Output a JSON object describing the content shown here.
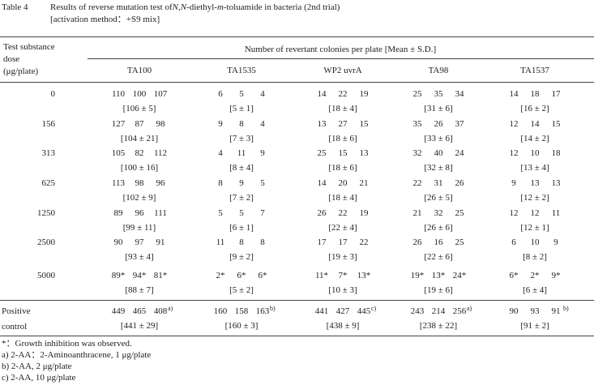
{
  "title": {
    "label": "Table 4",
    "parts": [
      "Results of reverse mutation test of ",
      "N,N",
      "-diethyl-",
      "m",
      "-toluamide in bacteria (2nd trial)"
    ],
    "subtitle": "[activation method：+S9 mix]"
  },
  "header": {
    "dose": [
      "Test substance",
      "dose",
      "(μg/plate)"
    ],
    "group": "Number of revertant colonies per plate [Mean ± S.D.]",
    "strains": [
      "TA100",
      "TA1535",
      "WP2 uvrA",
      "TA98",
      "TA1537"
    ]
  },
  "rows": [
    {
      "dose": "0",
      "cells": [
        {
          "plates": [
            "110",
            "100",
            "107"
          ],
          "mean": "[106 ± 5]"
        },
        {
          "plates": [
            "6",
            "5",
            "4"
          ],
          "mean": "[5 ± 1]"
        },
        {
          "plates": [
            "14",
            "22",
            "19"
          ],
          "mean": "[18 ± 4]"
        },
        {
          "plates": [
            "25",
            "35",
            "34"
          ],
          "mean": "[31 ± 6]"
        },
        {
          "plates": [
            "14",
            "18",
            "17"
          ],
          "mean": "[16 ± 2]"
        }
      ]
    },
    {
      "dose": "156",
      "cells": [
        {
          "plates": [
            "127",
            "87",
            "98"
          ],
          "mean": "[104 ± 21]"
        },
        {
          "plates": [
            "9",
            "8",
            "4"
          ],
          "mean": "[7 ± 3]"
        },
        {
          "plates": [
            "13",
            "27",
            "15"
          ],
          "mean": "[18 ± 6]"
        },
        {
          "plates": [
            "35",
            "26",
            "37"
          ],
          "mean": "[33 ± 6]"
        },
        {
          "plates": [
            "12",
            "14",
            "15"
          ],
          "mean": "[14 ± 2]"
        }
      ]
    },
    {
      "dose": "313",
      "cells": [
        {
          "plates": [
            "105",
            "82",
            "112"
          ],
          "mean": "[100 ± 16]"
        },
        {
          "plates": [
            "4",
            "11",
            "9"
          ],
          "mean": "[8 ± 4]"
        },
        {
          "plates": [
            "25",
            "15",
            "13"
          ],
          "mean": "[18 ± 6]"
        },
        {
          "plates": [
            "32",
            "40",
            "24"
          ],
          "mean": "[32 ± 8]"
        },
        {
          "plates": [
            "12",
            "10",
            "18"
          ],
          "mean": "[13 ± 4]"
        }
      ]
    },
    {
      "dose": "625",
      "cells": [
        {
          "plates": [
            "113",
            "98",
            "96"
          ],
          "mean": "[102 ± 9]"
        },
        {
          "plates": [
            "8",
            "9",
            "5"
          ],
          "mean": "[7 ± 2]"
        },
        {
          "plates": [
            "14",
            "20",
            "21"
          ],
          "mean": "[18 ± 4]"
        },
        {
          "plates": [
            "22",
            "31",
            "26"
          ],
          "mean": "[26 ± 5]"
        },
        {
          "plates": [
            "9",
            "13",
            "13"
          ],
          "mean": "[12 ± 2]"
        }
      ]
    },
    {
      "dose": "1250",
      "cells": [
        {
          "plates": [
            "89",
            "96",
            "111"
          ],
          "mean": "[99 ± 11]"
        },
        {
          "plates": [
            "5",
            "5",
            "7"
          ],
          "mean": "[6 ± 1]"
        },
        {
          "plates": [
            "26",
            "22",
            "19"
          ],
          "mean": "[22 ± 4]"
        },
        {
          "plates": [
            "21",
            "32",
            "25"
          ],
          "mean": "[26 ± 6]"
        },
        {
          "plates": [
            "12",
            "12",
            "11"
          ],
          "mean": "[12 ± 1]"
        }
      ]
    },
    {
      "dose": "2500",
      "cells": [
        {
          "plates": [
            "90",
            "97",
            "91"
          ],
          "mean": "[93 ± 4]"
        },
        {
          "plates": [
            "11",
            "8",
            "8"
          ],
          "mean": "[9 ± 2]"
        },
        {
          "plates": [
            "17",
            "17",
            "22"
          ],
          "mean": "[19 ± 3]"
        },
        {
          "plates": [
            "26",
            "16",
            "25"
          ],
          "mean": "[22 ± 6]"
        },
        {
          "plates": [
            "6",
            "10",
            "9"
          ],
          "mean": "[8 ± 2]"
        }
      ]
    },
    {
      "dose": "5000",
      "cells": [
        {
          "plates": [
            "89*",
            "94*",
            "81*"
          ],
          "mean": "[88 ± 7]"
        },
        {
          "plates": [
            "2*",
            "6*",
            "6*"
          ],
          "mean": "[5 ± 2]"
        },
        {
          "plates": [
            "11*",
            "7*",
            "13*"
          ],
          "mean": "[10 ± 3]"
        },
        {
          "plates": [
            "19*",
            "13*",
            "24*"
          ],
          "mean": "[19 ± 6]"
        },
        {
          "plates": [
            "6*",
            "2*",
            "9*"
          ],
          "mean": "[6 ± 4]"
        }
      ]
    }
  ],
  "positive": {
    "label": [
      "Positive",
      "control"
    ],
    "cells": [
      {
        "plates": [
          "449",
          "465",
          "408"
        ],
        "note": "a)",
        "mean": "[441 ± 29]"
      },
      {
        "plates": [
          "160",
          "158",
          "163"
        ],
        "note": "b)",
        "mean": "[160 ± 3]"
      },
      {
        "plates": [
          "441",
          "427",
          "445"
        ],
        "note": "c)",
        "mean": "[438 ± 9]"
      },
      {
        "plates": [
          "243",
          "214",
          "256"
        ],
        "note": "a)",
        "mean": "[238 ± 22]"
      },
      {
        "plates": [
          "90",
          "93",
          "91"
        ],
        "note": "b)",
        "mean": "[91 ± 2]"
      }
    ]
  },
  "footnotes": [
    "*：Growth inhibition was observed.",
    "a) 2-AA：2-Aminoanthracene, 1 μg/plate",
    "b) 2-AA, 2 μg/plate",
    "c) 2-AA, 10 μg/plate"
  ]
}
